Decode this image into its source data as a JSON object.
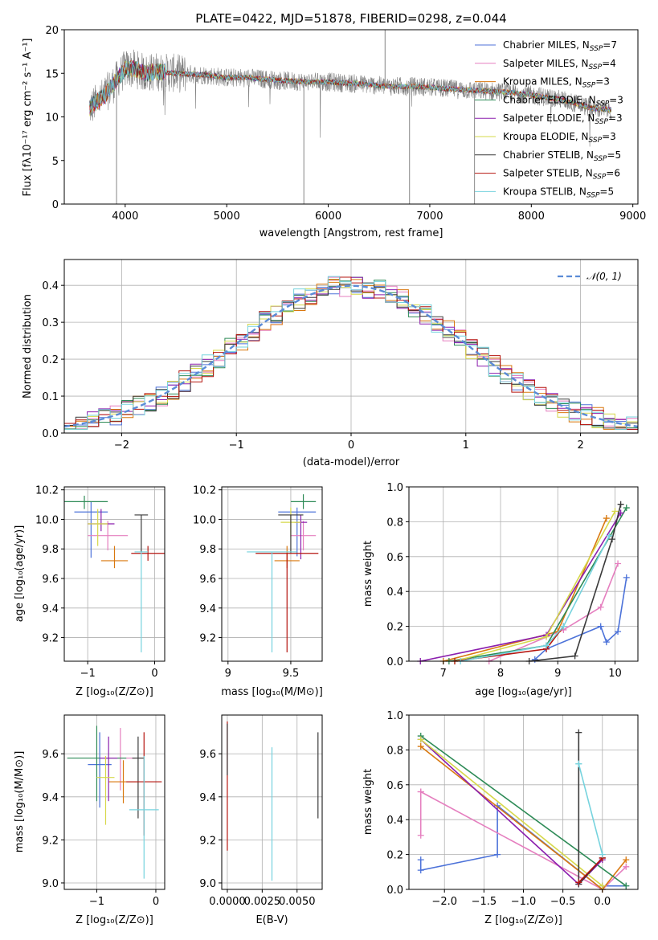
{
  "colors": [
    "#4c72d9",
    "#e57fbf",
    "#d9780f",
    "#2e8b57",
    "#8b1fae",
    "#d6d84a",
    "#3a3a3a",
    "#b5150f",
    "#76d3de"
  ],
  "chart_data": [
    {
      "id": "spectrum",
      "type": "line",
      "title": "PLATE=0422, MJD=51878, FIBERID=0298, z=0.044",
      "xlabel": "wavelength [Angstrom, rest frame]",
      "ylabel": "Flux [fλ10⁻¹⁷ erg cm⁻² s⁻¹ A⁻¹]",
      "xlim": [
        3400,
        9050
      ],
      "ylim": [
        0,
        20
      ],
      "xticks": [
        4000,
        5000,
        6000,
        7000,
        8000,
        9000
      ],
      "yticks": [
        0,
        5,
        10,
        15,
        20
      ],
      "data_envelope": {
        "x": [
          3650,
          3700,
          3800,
          3900,
          4000,
          4100,
          4200,
          4300,
          4500,
          4800,
          5000,
          5200,
          5500,
          5800,
          6000,
          6300,
          6600,
          6900,
          7200,
          7500,
          7800,
          8000,
          8300,
          8600,
          8800
        ],
        "y": [
          11.0,
          11.5,
          12.5,
          14.0,
          15.5,
          15.5,
          15.0,
          15.2,
          15.0,
          14.8,
          14.5,
          14.5,
          14.2,
          14.0,
          14.0,
          13.8,
          13.5,
          13.5,
          13.2,
          13.0,
          12.8,
          12.5,
          12.0,
          11.0,
          10.8
        ]
      },
      "legend_position": "upper right",
      "legend": [
        {
          "main": "Chabrier MILES, N",
          "sub": "SSP",
          "tail": "=7"
        },
        {
          "main": "Salpeter MILES, N",
          "sub": "SSP",
          "tail": "=4"
        },
        {
          "main": "Kroupa MILES, N",
          "sub": "SSP",
          "tail": "=3"
        },
        {
          "main": "Chabrier ELODIE, N",
          "sub": "SSP",
          "tail": "=3"
        },
        {
          "main": "Salpeter ELODIE, N",
          "sub": "SSP",
          "tail": "=3"
        },
        {
          "main": "Kroupa ELODIE, N",
          "sub": "SSP",
          "tail": "=3"
        },
        {
          "main": "Chabrier STELIB, N",
          "sub": "SSP",
          "tail": "=5"
        },
        {
          "main": "Salpeter STELIB, N",
          "sub": "SSP",
          "tail": "=6"
        },
        {
          "main": "Kroupa STELIB, N",
          "sub": "SSP",
          "tail": "=5"
        }
      ]
    },
    {
      "id": "residuals",
      "type": "bar",
      "xlabel": "(data-model)/error",
      "ylabel": "Normed distribution",
      "xlim": [
        -2.5,
        2.5
      ],
      "ylim": [
        0,
        0.47
      ],
      "xticks": [
        -2,
        -1,
        0,
        1,
        2
      ],
      "yticks": [
        0.0,
        0.1,
        0.2,
        0.3,
        0.4
      ],
      "grid": true,
      "curve_label": "𝒩(0, 1)",
      "curve": "normal(0,1)",
      "bin_width": 0.1
    },
    {
      "id": "age_vs_z",
      "type": "scatter",
      "xlabel": "Z [log₁₀(Z/Z⊙)]",
      "ylabel": "age  [log₁₀(age/yr)]",
      "xlim": [
        -1.35,
        0.15
      ],
      "ylim": [
        9.04,
        10.22
      ],
      "xticks": [
        -1,
        0
      ],
      "yticks": [
        9.2,
        9.4,
        9.6,
        9.8,
        10.0,
        10.2
      ],
      "points": [
        {
          "x": -0.95,
          "y": 10.05,
          "xerr": 0.25,
          "yerr": [
            0.31,
            0.07
          ]
        },
        {
          "x": -0.7,
          "y": 9.89,
          "xerr": 0.3,
          "yerr": [
            0.1,
            0.1
          ]
        },
        {
          "x": -0.6,
          "y": 9.72,
          "xerr": 0.2,
          "yerr": [
            0.05,
            0.1
          ]
        },
        {
          "x": -1.05,
          "y": 10.12,
          "xerr": 0.35,
          "yerr": [
            0.05,
            0.04
          ]
        },
        {
          "x": -0.8,
          "y": 9.97,
          "xerr": 0.2,
          "yerr": [
            0.05,
            0.1
          ]
        },
        {
          "x": -0.85,
          "y": 9.97,
          "xerr": 0.15,
          "yerr": [
            0.15,
            0.1
          ]
        },
        {
          "x": -0.2,
          "y": 10.03,
          "xerr": 0.1,
          "yerr": [
            0.25,
            0.0
          ]
        },
        {
          "x": -0.1,
          "y": 9.77,
          "xerr": 0.25,
          "yerr": [
            0.05,
            0.05
          ]
        },
        {
          "x": -0.2,
          "y": 9.78,
          "xerr": 0.1,
          "yerr": [
            0.68,
            0.0
          ]
        }
      ]
    },
    {
      "id": "age_vs_mass",
      "type": "scatter",
      "xlabel": "mass [log₁₀(M/M⊙)]",
      "ylabel": "",
      "xlim": [
        8.95,
        9.75
      ],
      "ylim": [
        9.04,
        10.22
      ],
      "xticks": [
        9.0,
        9.5
      ],
      "yticks": [
        9.2,
        9.4,
        9.6,
        9.8,
        10.0,
        10.2
      ],
      "points": [
        {
          "x": 9.55,
          "y": 10.05,
          "xerr": 0.15,
          "yerr": [
            0.3,
            0.03
          ]
        },
        {
          "x": 9.6,
          "y": 9.89,
          "xerr": 0.1,
          "yerr": [
            0.1,
            0.1
          ]
        },
        {
          "x": 9.47,
          "y": 9.72,
          "xerr": 0.1,
          "yerr": [
            0.05,
            0.1
          ]
        },
        {
          "x": 9.6,
          "y": 10.12,
          "xerr": 0.1,
          "yerr": [
            0.05,
            0.05
          ]
        },
        {
          "x": 9.58,
          "y": 9.98,
          "xerr": 0.05,
          "yerr": [
            0.25,
            0.05
          ]
        },
        {
          "x": 9.5,
          "y": 9.98,
          "xerr": 0.08,
          "yerr": [
            0.1,
            0.1
          ]
        },
        {
          "x": 9.5,
          "y": 10.03,
          "xerr": 0.1,
          "yerr": [
            0.26,
            0.0
          ]
        },
        {
          "x": 9.47,
          "y": 9.77,
          "xerr": 0.25,
          "yerr": [
            0.67,
            0.0
          ]
        },
        {
          "x": 9.35,
          "y": 9.78,
          "xerr": 0.2,
          "yerr": [
            0.68,
            0.0
          ]
        }
      ]
    },
    {
      "id": "weight_vs_age",
      "type": "line",
      "xlabel": "age  [log₁₀(age/yr)]",
      "ylabel": "mass weight",
      "xlim": [
        6.4,
        10.4
      ],
      "ylim": [
        0,
        1
      ],
      "xticks": [
        7,
        8,
        9,
        10
      ],
      "yticks": [
        0.0,
        0.2,
        0.4,
        0.6,
        0.8,
        1.0
      ],
      "series": [
        {
          "x": [
            8.6,
            8.8,
            9.75,
            9.85,
            10.05,
            10.2
          ],
          "y": [
            0.01,
            0.07,
            0.2,
            0.11,
            0.17,
            0.48
          ]
        },
        {
          "x": [
            7.8,
            9.1,
            9.75,
            10.05
          ],
          "y": [
            0.0,
            0.18,
            0.31,
            0.56
          ]
        },
        {
          "x": [
            7.0,
            9.0,
            9.85
          ],
          "y": [
            0.0,
            0.17,
            0.82
          ]
        },
        {
          "x": [
            7.1,
            8.8,
            10.2
          ],
          "y": [
            0.0,
            0.09,
            0.88
          ]
        },
        {
          "x": [
            6.6,
            8.8,
            10.1
          ],
          "y": [
            0.0,
            0.15,
            0.85
          ]
        },
        {
          "x": [
            7.2,
            8.8,
            10.0
          ],
          "y": [
            0.0,
            0.14,
            0.86
          ]
        },
        {
          "x": [
            8.5,
            9.3,
            9.95,
            10.1
          ],
          "y": [
            0.0,
            0.03,
            0.7,
            0.9
          ]
        },
        {
          "x": [
            7.2,
            8.8,
            9.1
          ],
          "y": [
            0.0,
            0.07,
            0.2
          ]
        },
        {
          "x": [
            7.3,
            8.8,
            9.1,
            9.9
          ],
          "y": [
            0.0,
            0.09,
            0.2,
            0.72
          ]
        }
      ]
    },
    {
      "id": "mass_vs_z",
      "type": "scatter",
      "xlabel": "Z [log₁₀(Z/Z⊙)]",
      "ylabel": "mass [log₁₀(M/M⊙)]",
      "xlim": [
        -1.55,
        0.15
      ],
      "ylim": [
        8.97,
        9.78
      ],
      "xticks": [
        -1,
        0
      ],
      "yticks": [
        9.0,
        9.2,
        9.4,
        9.6
      ],
      "points": [
        {
          "x": -0.95,
          "y": 9.55,
          "xerr": 0.2,
          "yerr": [
            0.2,
            0.15
          ]
        },
        {
          "x": -0.6,
          "y": 9.58,
          "xerr": 0.25,
          "yerr": [
            0.15,
            0.14
          ]
        },
        {
          "x": -0.55,
          "y": 9.47,
          "xerr": 0.25,
          "yerr": [
            0.1,
            0.1
          ]
        },
        {
          "x": -1.0,
          "y": 9.58,
          "xerr": 0.5,
          "yerr": [
            0.2,
            0.15
          ]
        },
        {
          "x": -0.8,
          "y": 9.58,
          "xerr": 0.15,
          "yerr": [
            0.2,
            0.1
          ]
        },
        {
          "x": -0.85,
          "y": 9.49,
          "xerr": 0.15,
          "yerr": [
            0.22,
            0.1
          ]
        },
        {
          "x": -0.3,
          "y": 9.58,
          "xerr": 0.1,
          "yerr": [
            0.28,
            0.1
          ]
        },
        {
          "x": -0.2,
          "y": 9.47,
          "xerr": 0.3,
          "yerr": [
            0.25,
            0.23
          ]
        },
        {
          "x": -0.2,
          "y": 9.34,
          "xerr": 0.25,
          "yerr": [
            0.32,
            0.25
          ]
        }
      ]
    },
    {
      "id": "mass_vs_ebv",
      "type": "scatter",
      "xlabel": "E(B-V)",
      "ylabel": "",
      "xlim": [
        -0.0004,
        0.0068
      ],
      "ylim": [
        8.97,
        9.78
      ],
      "xticks": [
        0.0,
        0.0025,
        0.005
      ],
      "xticklabels": [
        "0.0000",
        "0.0025",
        "0.0050"
      ],
      "yticks": [
        9.0,
        9.2,
        9.4,
        9.6
      ],
      "points": [
        {
          "x": 0.0,
          "y": 9.45,
          "yerr": [
            0.3,
            0.3
          ],
          "c": 7
        },
        {
          "x": 0.0,
          "y": 9.6,
          "yerr": [
            0.1,
            0.14
          ],
          "c": 6
        },
        {
          "x": 0.0032,
          "y": 9.3,
          "yerr": [
            0.29,
            0.33
          ],
          "c": 8
        },
        {
          "x": 0.0065,
          "y": 9.5,
          "yerr": [
            0.2,
            0.2
          ],
          "c": 6
        }
      ]
    },
    {
      "id": "weight_vs_z",
      "type": "line",
      "xlabel": "Z [log₁₀(Z/Z⊙)]",
      "ylabel": "mass weight",
      "xlim": [
        -2.45,
        0.45
      ],
      "ylim": [
        0,
        1
      ],
      "xticks": [
        -2.0,
        -1.5,
        -1.0,
        -0.5,
        0.0
      ],
      "xticklabels": [
        "−2.0",
        "−1.5",
        "−1.0",
        "−0.5",
        "0.0"
      ],
      "yticks": [
        0.0,
        0.2,
        0.4,
        0.6,
        0.8,
        1.0
      ],
      "series": [
        {
          "x": [
            -2.3,
            -2.3,
            -1.33,
            -1.33,
            0.0,
            0.0,
            0.3
          ],
          "y": [
            0.17,
            0.11,
            0.2,
            0.48,
            0.0,
            0.02,
            0.02
          ]
        },
        {
          "x": [
            -2.3,
            -2.3,
            -2.3,
            0.0,
            0.3
          ],
          "y": [
            0.31,
            0.56,
            0.56,
            0.0,
            0.13
          ]
        },
        {
          "x": [
            -2.3,
            0.0,
            0.3
          ],
          "y": [
            0.82,
            0.0,
            0.17
          ]
        },
        {
          "x": [
            -2.3,
            0.3
          ],
          "y": [
            0.88,
            0.02
          ]
        },
        {
          "x": [
            -2.3,
            -0.3,
            0.0
          ],
          "y": [
            0.86,
            0.03,
            0.17
          ]
        },
        {
          "x": [
            -2.3,
            0.0
          ],
          "y": [
            0.86,
            0.02
          ]
        },
        {
          "x": [
            -0.3,
            -0.3,
            0.0
          ],
          "y": [
            0.9,
            0.03,
            0.18
          ]
        },
        {
          "x": [
            -0.3,
            0.0
          ],
          "y": [
            0.04,
            0.18
          ]
        },
        {
          "x": [
            -0.3,
            -0.3,
            0.0
          ],
          "y": [
            0.72,
            0.72,
            0.2
          ]
        }
      ]
    }
  ]
}
